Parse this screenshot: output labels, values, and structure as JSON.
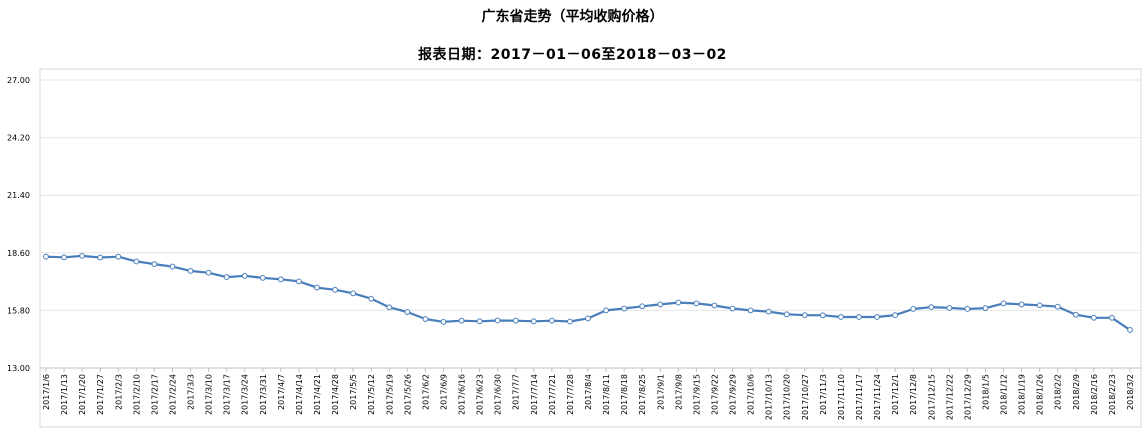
{
  "chart_data": {
    "type": "line",
    "title": "广东省走势（平均收购价格）",
    "subtitle": "报表日期：2017－01－06至2018－03－02",
    "ylim": [
      13.0,
      27.0
    ],
    "yticks": [
      "13.00",
      "15.80",
      "18.60",
      "21.40",
      "24.20",
      "27.00"
    ],
    "grid": true,
    "categories": [
      "2017/1/6",
      "2017/1/13",
      "2017/1/20",
      "2017/1/27",
      "2017/2/3",
      "2017/2/10",
      "2017/2/17",
      "2017/2/24",
      "2017/3/3",
      "2017/3/10",
      "2017/3/17",
      "2017/3/24",
      "2017/3/31",
      "2017/4/7",
      "2017/4/14",
      "2017/4/21",
      "2017/4/28",
      "2017/5/5",
      "2017/5/12",
      "2017/5/19",
      "2017/5/26",
      "2017/6/2",
      "2017/6/9",
      "2017/6/16",
      "2017/6/23",
      "2017/6/30",
      "2017/7/7",
      "2017/7/14",
      "2017/7/21",
      "2017/7/28",
      "2017/8/4",
      "2017/8/11",
      "2017/8/18",
      "2017/8/25",
      "2017/9/1",
      "2017/9/8",
      "2017/9/15",
      "2017/9/22",
      "2017/9/29",
      "2017/10/6",
      "2017/10/13",
      "2017/10/20",
      "2017/10/27",
      "2017/11/3",
      "2017/11/10",
      "2017/11/17",
      "2017/11/24",
      "2017/12/1",
      "2017/12/8",
      "2017/12/15",
      "2017/12/22",
      "2017/12/29",
      "2018/1/5",
      "2018/1/12",
      "2018/1/19",
      "2018/1/26",
      "2018/2/2",
      "2018/2/9",
      "2018/2/16",
      "2018/2/23",
      "2018/3/2"
    ],
    "series": [
      {
        "values": [
          18.41,
          18.38,
          18.45,
          18.37,
          18.41,
          18.18,
          18.05,
          17.93,
          17.72,
          17.63,
          17.42,
          17.48,
          17.38,
          17.31,
          17.21,
          16.91,
          16.8,
          16.63,
          16.37,
          15.95,
          15.72,
          15.38,
          15.24,
          15.3,
          15.27,
          15.31,
          15.3,
          15.27,
          15.3,
          15.26,
          15.41,
          15.8,
          15.89,
          16.0,
          16.09,
          16.18,
          16.14,
          16.04,
          15.89,
          15.8,
          15.74,
          15.61,
          15.57,
          15.56,
          15.48,
          15.48,
          15.48,
          15.57,
          15.87,
          15.96,
          15.92,
          15.87,
          15.91,
          16.14,
          16.09,
          16.05,
          15.98,
          15.59,
          15.44,
          15.44,
          14.85
        ],
        "color": "#4a7ebb",
        "marker_fill": "#ffffff"
      }
    ]
  }
}
